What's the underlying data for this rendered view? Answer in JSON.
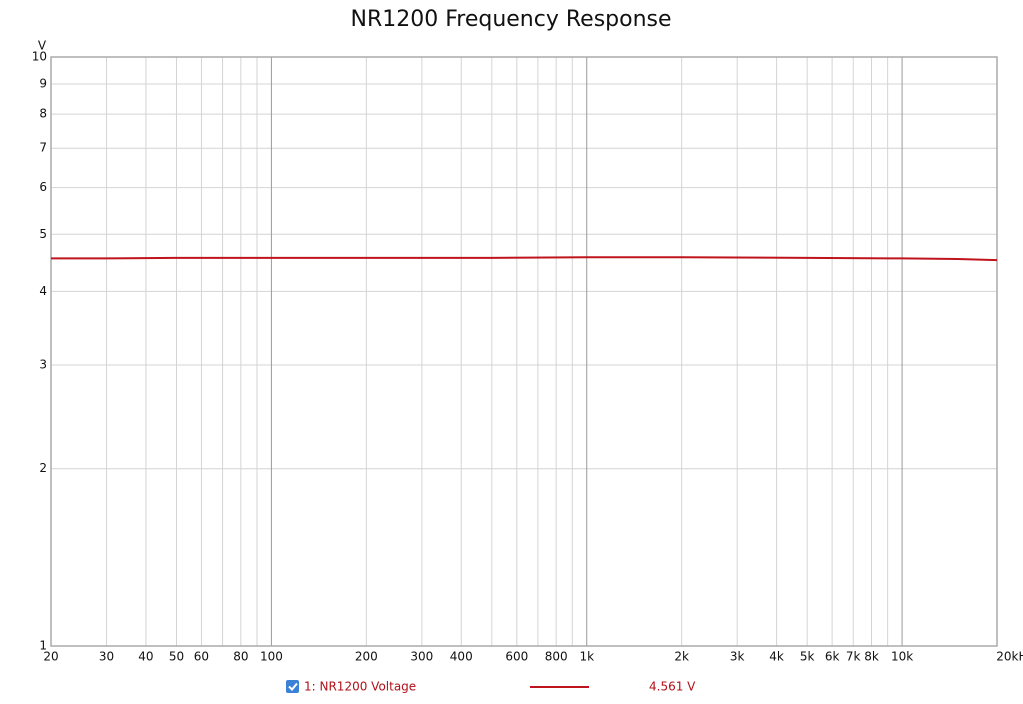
{
  "chart_data": {
    "type": "line",
    "title": "NR1200 Frequency Response",
    "y_unit": "V",
    "x": [
      20,
      30,
      50,
      100,
      200,
      500,
      1000,
      2000,
      5000,
      10000,
      15000,
      20000
    ],
    "series": [
      {
        "name": "1: NR1200 Voltage",
        "color": "#c0141c",
        "readout": "4.561 V",
        "values": [
          4.55,
          4.55,
          4.56,
          4.56,
          4.56,
          4.56,
          4.57,
          4.57,
          4.56,
          4.55,
          4.54,
          4.52
        ]
      }
    ],
    "log_x": true,
    "log_y": true,
    "xlim": [
      20,
      20000
    ],
    "ylim": [
      1,
      10
    ],
    "xticks": [
      20,
      30,
      40,
      50,
      60,
      80,
      100,
      200,
      300,
      400,
      600,
      800,
      {
        "value": 1000,
        "label": "1k"
      },
      {
        "value": 2000,
        "label": "2k"
      },
      {
        "value": 3000,
        "label": "3k"
      },
      {
        "value": 4000,
        "label": "4k"
      },
      {
        "value": 5000,
        "label": "5k"
      },
      {
        "value": 6000,
        "label": "6k"
      },
      {
        "value": 7000,
        "label": "7k"
      },
      {
        "value": 8000,
        "label": "8k"
      },
      {
        "value": 10000,
        "label": "10k"
      },
      {
        "value": 20000,
        "label": "20kHz"
      }
    ],
    "x_minor_grid": [
      70,
      90,
      500,
      700,
      900,
      9000
    ],
    "x_major_grid": [
      100,
      1000,
      10000
    ],
    "yticks": [
      1,
      2,
      3,
      4,
      5,
      6,
      7,
      8,
      9,
      10
    ],
    "grid": true
  }
}
